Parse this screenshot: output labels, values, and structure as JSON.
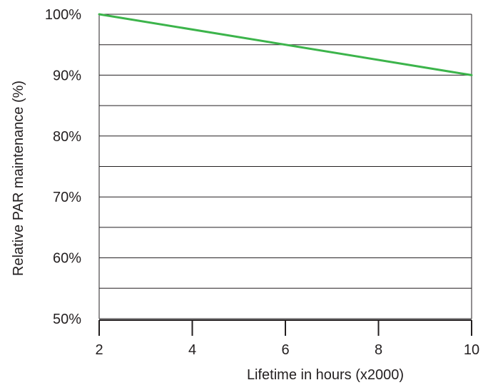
{
  "chart_data": {
    "type": "line",
    "xlabel": "Lifetime in hours (x2000)",
    "ylabel": "Relative PAR maintenance (%)",
    "xlim": [
      2,
      10
    ],
    "ylim": [
      50,
      100
    ],
    "x_ticks": [
      2,
      4,
      6,
      8,
      10
    ],
    "x_tick_labels": [
      "2",
      "4",
      "6",
      "8",
      "10"
    ],
    "y_ticks": [
      50,
      60,
      70,
      80,
      90,
      100
    ],
    "y_tick_labels": [
      "50%",
      "60%",
      "70%",
      "80%",
      "90%",
      "100%"
    ],
    "grid": "horizontal, every 5%",
    "series": [
      {
        "color": "#3cb44b",
        "x": [
          2,
          10
        ],
        "y": [
          100,
          90
        ]
      }
    ]
  }
}
